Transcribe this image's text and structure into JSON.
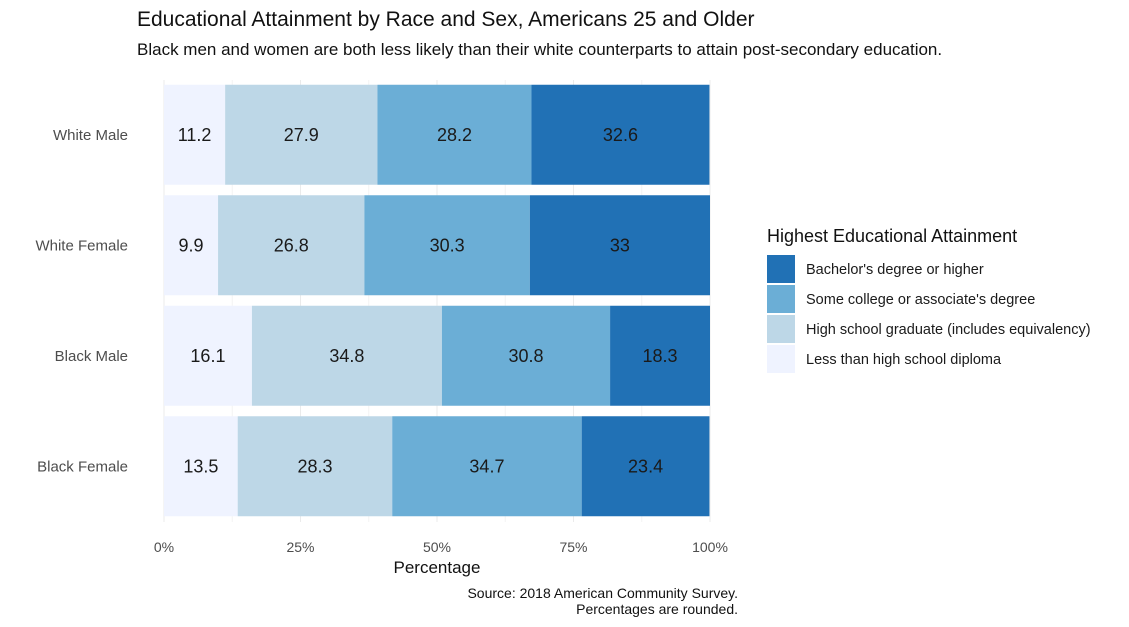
{
  "chart_data": {
    "type": "bar",
    "orientation": "horizontal-stacked",
    "title": "Educational Attainment by Race and Sex, Americans 25 and Older",
    "subtitle": "Black men and women are both less likely than their white counterparts to attain post-secondary education.",
    "categories": [
      "White Male",
      "White Female",
      "Black Male",
      "Black Female"
    ],
    "series": [
      {
        "name": "Less than high school diploma",
        "color": "#eff3ff",
        "values": [
          11.2,
          9.9,
          16.1,
          13.5
        ]
      },
      {
        "name": "High school graduate (includes equivalency)",
        "color": "#bdd7e7",
        "values": [
          27.9,
          26.8,
          34.8,
          28.3
        ]
      },
      {
        "name": "Some college or associate's degree",
        "color": "#6baed6",
        "values": [
          28.2,
          30.3,
          30.8,
          34.7
        ]
      },
      {
        "name": "Bachelor's degree or higher",
        "color": "#2171b5",
        "values": [
          32.6,
          33,
          18.3,
          23.4
        ]
      }
    ],
    "xlabel": "Percentage",
    "xticks": [
      "0%",
      "25%",
      "50%",
      "75%",
      "100%"
    ],
    "xlim": [
      0,
      100
    ],
    "legend": {
      "title": "Highest Educational Attainment",
      "position": "right",
      "order": [
        "Bachelor's degree or higher",
        "Some college or associate's degree",
        "High school graduate (includes equivalency)",
        "Less than high school diploma"
      ]
    },
    "caption": [
      "Source: 2018 American Community Survey.",
      "Percentages are rounded."
    ],
    "grid": true
  }
}
